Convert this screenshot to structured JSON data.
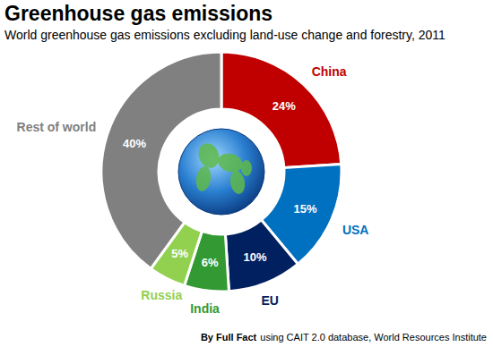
{
  "chart_data": {
    "type": "donut",
    "title": "Greenhouse gas emissions",
    "subtitle": "World greenhouse gas emissions excluding land-use change and forestry, 2011",
    "categories": [
      "China",
      "USA",
      "EU",
      "India",
      "Russia",
      "Rest of world"
    ],
    "values": [
      24,
      15,
      10,
      6,
      5,
      40
    ],
    "value_labels": [
      "24%",
      "15%",
      "10%",
      "6%",
      "5%",
      "40%"
    ],
    "colors": [
      "#c00000",
      "#0070c0",
      "#002060",
      "#339933",
      "#92d050",
      "#808080"
    ],
    "data_labels": true,
    "source_by": "By Full Fact",
    "source": "using CAIT 2.0 database, World Resources Institute"
  }
}
